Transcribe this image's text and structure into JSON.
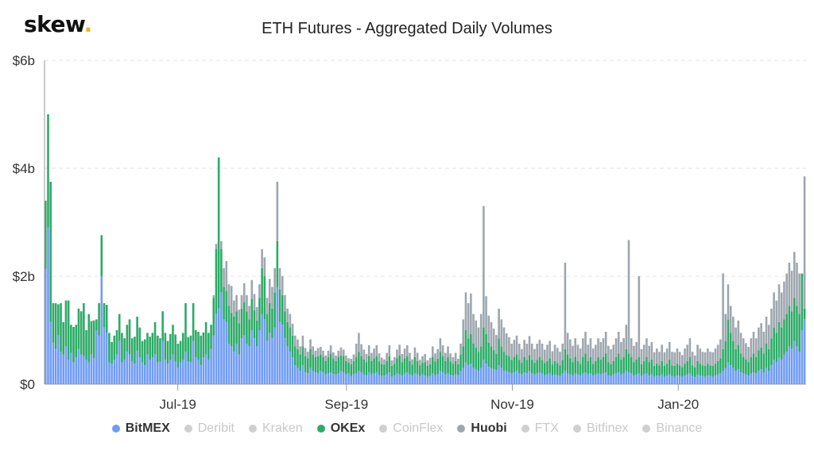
{
  "header": {
    "logo_text": "skew",
    "logo_dot": ".",
    "title": "ETH Futures - Aggregated Daily Volumes"
  },
  "colors": {
    "BitMEX": "#6f9bf5",
    "OKEx": "#2cab66",
    "Huobi": "#9ea6ae",
    "inactive": "#cfcfcf",
    "grid": "#e3e3e3",
    "axis": "#999999",
    "logo_dot": "#f2b50f"
  },
  "legend": [
    {
      "name": "BitMEX",
      "active": true
    },
    {
      "name": "Deribit",
      "active": false
    },
    {
      "name": "Kraken",
      "active": false
    },
    {
      "name": "OKEx",
      "active": true
    },
    {
      "name": "CoinFlex",
      "active": false
    },
    {
      "name": "Huobi",
      "active": true
    },
    {
      "name": "FTX",
      "active": false
    },
    {
      "name": "Bitfinex",
      "active": false
    },
    {
      "name": "Binance",
      "active": false
    }
  ],
  "chart_data": {
    "type": "bar",
    "stacked": true,
    "title": "ETH Futures - Aggregated Daily Volumes",
    "xlabel": "",
    "ylabel": "",
    "x_range": [
      "2019-05-13",
      "2020-02-17"
    ],
    "x_ticks": [
      {
        "date": "2019-07-01",
        "label": "Jul-19"
      },
      {
        "date": "2019-09-01",
        "label": "Sep-19"
      },
      {
        "date": "2019-11-01",
        "label": "Nov-19"
      },
      {
        "date": "2020-01-01",
        "label": "Jan-20"
      }
    ],
    "y_ticks": [
      {
        "value": 0,
        "label": "$0"
      },
      {
        "value": 2,
        "label": "$2b"
      },
      {
        "value": 4,
        "label": "$4b"
      },
      {
        "value": 6,
        "label": "$6b"
      }
    ],
    "ylim": [
      0,
      6
    ],
    "y_unit": "billion USD",
    "grid": true,
    "legend_position": "bottom",
    "series": [
      {
        "name": "BitMEX",
        "daily_values": [
          2.14,
          2.9,
          1.15,
          0.77,
          0.65,
          0.9,
          0.6,
          0.55,
          0.7,
          0.45,
          0.58,
          0.4,
          0.5,
          0.65,
          0.55,
          0.52,
          0.45,
          0.4,
          0.55,
          0.48,
          1.0,
          0.9,
          2.0,
          1.05,
          0.95,
          0.4,
          0.38,
          0.45,
          0.55,
          0.8,
          0.4,
          0.45,
          0.6,
          0.55,
          0.42,
          0.38,
          0.62,
          0.5,
          0.4,
          0.35,
          0.55,
          0.45,
          0.5,
          0.55,
          0.4,
          0.42,
          0.8,
          0.45,
          0.38,
          0.45,
          0.55,
          0.42,
          0.3,
          0.4,
          0.45,
          0.6,
          0.42,
          0.4,
          0.8,
          0.5,
          0.45,
          0.35,
          0.5,
          0.55,
          0.45,
          0.65,
          0.9,
          1.3,
          1.4,
          1.7,
          1.2,
          1.15,
          0.75,
          0.7,
          0.6,
          0.75,
          0.55,
          0.85,
          0.9,
          0.75,
          0.7,
          1.0,
          0.85,
          0.7,
          1.0,
          1.3,
          1.2,
          0.8,
          0.95,
          0.85,
          1.05,
          1.8,
          1.15,
          1.1,
          0.85,
          0.7,
          0.6,
          0.5,
          0.35,
          0.3,
          0.25,
          0.35,
          0.22,
          0.2,
          0.3,
          0.25,
          0.22,
          0.2,
          0.25,
          0.22,
          0.18,
          0.2,
          0.22,
          0.19,
          0.18,
          0.2,
          0.25,
          0.22,
          0.18,
          0.2,
          0.15,
          0.18,
          0.2,
          0.25,
          0.22,
          0.18,
          0.16,
          0.22,
          0.18,
          0.2,
          0.22,
          0.17,
          0.15,
          0.16,
          0.18,
          0.22,
          0.14,
          0.16,
          0.2,
          0.18,
          0.16,
          0.2,
          0.22,
          0.18,
          0.16,
          0.2,
          0.18,
          0.15,
          0.18,
          0.16,
          0.14,
          0.15,
          0.2,
          0.17,
          0.19,
          0.25,
          0.22,
          0.18,
          0.2,
          0.17,
          0.16,
          0.18,
          0.17,
          0.25,
          0.3,
          0.4,
          0.35,
          0.38,
          0.3,
          0.28,
          0.25,
          0.3,
          0.45,
          0.38,
          0.32,
          0.3,
          0.28,
          0.26,
          0.35,
          0.3,
          0.25,
          0.24,
          0.22,
          0.2,
          0.22,
          0.25,
          0.2,
          0.18,
          0.22,
          0.2,
          0.24,
          0.2,
          0.18,
          0.2,
          0.22,
          0.2,
          0.17,
          0.18,
          0.2,
          0.16,
          0.18,
          0.17,
          0.15,
          0.2,
          0.25,
          0.2,
          0.18,
          0.16,
          0.2,
          0.18,
          0.16,
          0.2,
          0.22,
          0.18,
          0.2,
          0.16,
          0.18,
          0.2,
          0.18,
          0.2,
          0.22,
          0.16,
          0.15,
          0.18,
          0.2,
          0.22,
          0.18,
          0.2,
          0.25,
          0.22,
          0.2,
          0.16,
          0.18,
          0.2,
          0.15,
          0.18,
          0.2,
          0.16,
          0.18,
          0.14,
          0.16,
          0.15,
          0.18,
          0.14,
          0.16,
          0.18,
          0.15,
          0.14,
          0.16,
          0.15,
          0.14,
          0.16,
          0.18,
          0.2,
          0.15,
          0.13,
          0.18,
          0.16,
          0.15,
          0.14,
          0.16,
          0.15,
          0.14,
          0.16,
          0.18,
          0.2,
          0.25,
          0.3,
          0.4,
          0.35,
          0.3,
          0.25,
          0.28,
          0.22,
          0.2,
          0.18,
          0.16,
          0.2,
          0.22,
          0.2,
          0.25,
          0.28,
          0.22,
          0.3,
          0.25,
          0.35,
          0.45,
          0.4,
          0.5,
          0.45,
          0.55,
          0.6,
          0.7,
          0.65,
          0.8,
          0.7,
          0.6,
          1.0,
          1.2
        ]
      },
      {
        "name": "OKEx",
        "daily_values": [
          1.26,
          2.1,
          2.6,
          0.73,
          0.85,
          0.58,
          0.9,
          0.6,
          0.85,
          1.1,
          0.52,
          0.66,
          0.6,
          0.75,
          0.8,
          0.98,
          0.55,
          0.9,
          0.62,
          0.7,
          0.2,
          0.6,
          0.76,
          0.45,
          0.52,
          0.55,
          0.4,
          0.45,
          0.45,
          0.5,
          0.55,
          0.4,
          0.5,
          0.65,
          0.43,
          0.5,
          0.63,
          0.55,
          0.4,
          0.48,
          0.4,
          0.43,
          0.45,
          0.6,
          0.5,
          0.43,
          0.55,
          0.5,
          0.42,
          0.48,
          0.55,
          0.5,
          0.45,
          0.4,
          0.5,
          0.9,
          0.45,
          0.5,
          0.7,
          0.5,
          0.52,
          0.55,
          0.46,
          0.6,
          0.5,
          0.45,
          0.7,
          1.2,
          2.8,
          0.8,
          0.6,
          0.58,
          0.7,
          0.62,
          0.65,
          0.6,
          0.58,
          0.55,
          0.62,
          0.6,
          0.5,
          0.58,
          0.52,
          0.48,
          0.6,
          0.85,
          0.8,
          0.5,
          0.55,
          0.55,
          0.65,
          0.85,
          0.6,
          0.55,
          0.5,
          0.45,
          0.45,
          0.4,
          0.35,
          0.35,
          0.3,
          0.35,
          0.3,
          0.28,
          0.35,
          0.3,
          0.28,
          0.32,
          0.3,
          0.28,
          0.25,
          0.3,
          0.35,
          0.28,
          0.25,
          0.3,
          0.28,
          0.3,
          0.25,
          0.2,
          0.22,
          0.25,
          0.3,
          0.35,
          0.3,
          0.28,
          0.25,
          0.3,
          0.25,
          0.28,
          0.3,
          0.25,
          0.22,
          0.2,
          0.25,
          0.3,
          0.2,
          0.22,
          0.28,
          0.35,
          0.25,
          0.28,
          0.3,
          0.25,
          0.2,
          0.3,
          0.25,
          0.2,
          0.22,
          0.25,
          0.2,
          0.22,
          0.3,
          0.25,
          0.28,
          0.35,
          0.3,
          0.25,
          0.3,
          0.25,
          0.22,
          0.25,
          0.2,
          0.3,
          0.4,
          0.6,
          0.5,
          0.55,
          0.45,
          0.4,
          0.35,
          0.4,
          0.6,
          0.55,
          0.45,
          0.4,
          0.35,
          0.3,
          0.5,
          0.4,
          0.35,
          0.3,
          0.3,
          0.25,
          0.28,
          0.3,
          0.25,
          0.22,
          0.28,
          0.25,
          0.3,
          0.25,
          0.22,
          0.25,
          0.28,
          0.25,
          0.22,
          0.25,
          0.28,
          0.2,
          0.25,
          0.22,
          0.2,
          0.25,
          0.4,
          0.35,
          0.3,
          0.25,
          0.3,
          0.25,
          0.22,
          0.3,
          0.35,
          0.25,
          0.3,
          0.22,
          0.25,
          0.3,
          0.28,
          0.3,
          0.35,
          0.25,
          0.22,
          0.25,
          0.3,
          0.35,
          0.28,
          0.3,
          0.4,
          0.35,
          0.3,
          0.25,
          0.28,
          0.3,
          0.22,
          0.25,
          0.3,
          0.25,
          0.28,
          0.2,
          0.22,
          0.2,
          0.25,
          0.2,
          0.22,
          0.28,
          0.2,
          0.2,
          0.22,
          0.2,
          0.18,
          0.22,
          0.25,
          0.3,
          0.2,
          0.18,
          0.25,
          0.22,
          0.2,
          0.2,
          0.22,
          0.2,
          0.2,
          0.22,
          0.25,
          0.28,
          0.4,
          0.5,
          0.8,
          0.6,
          0.5,
          0.4,
          0.45,
          0.35,
          0.3,
          0.28,
          0.25,
          0.3,
          0.35,
          0.3,
          0.38,
          0.4,
          0.35,
          0.45,
          0.4,
          0.5,
          0.6,
          0.55,
          0.65,
          0.6,
          0.65,
          0.7,
          0.75,
          0.7,
          0.8,
          0.75,
          0.7,
          1.05,
          0.2
        ]
      },
      {
        "name": "Huobi",
        "daily_values": [
          0,
          0,
          0,
          0,
          0,
          0,
          0,
          0,
          0,
          0,
          0,
          0,
          0,
          0,
          0,
          0,
          0,
          0,
          0,
          0,
          0,
          0,
          0,
          0,
          0,
          0,
          0,
          0,
          0,
          0,
          0,
          0,
          0,
          0,
          0,
          0,
          0,
          0,
          0,
          0,
          0,
          0,
          0,
          0,
          0,
          0,
          0,
          0,
          0,
          0,
          0,
          0,
          0,
          0,
          0,
          0,
          0,
          0,
          0,
          0,
          0,
          0,
          0,
          0,
          0,
          0,
          0.05,
          0.1,
          0,
          0.15,
          0.35,
          0.55,
          0.4,
          0.5,
          0.3,
          0.3,
          0.25,
          0.25,
          0.35,
          0.3,
          0.25,
          0.35,
          0.3,
          0.25,
          0.25,
          0.35,
          0.35,
          0.3,
          0.45,
          0.4,
          0.45,
          1.1,
          0.4,
          0.35,
          0.3,
          0.25,
          0.25,
          0.22,
          0.2,
          0.18,
          0.15,
          0.2,
          0.15,
          0.12,
          0.18,
          0.15,
          0.12,
          0.15,
          0.14,
          0.12,
          0.1,
          0.12,
          0.15,
          0.12,
          0.1,
          0.12,
          0.15,
          0.12,
          0.1,
          0.08,
          0.1,
          0.12,
          0.25,
          0.35,
          0.22,
          0.18,
          0.15,
          0.2,
          0.15,
          0.18,
          0.2,
          0.15,
          0.12,
          0.1,
          0.15,
          0.2,
          0.1,
          0.12,
          0.16,
          0.2,
          0.15,
          0.18,
          0.2,
          0.15,
          0.1,
          0.18,
          0.15,
          0.1,
          0.12,
          0.15,
          0.1,
          0.12,
          0.2,
          0.15,
          0.18,
          0.25,
          0.2,
          0.15,
          0.2,
          0.15,
          0.12,
          0.15,
          0.1,
          0.2,
          0.5,
          0.7,
          0.65,
          0.75,
          0.55,
          0.5,
          0.45,
          0.6,
          2.25,
          0.7,
          0.5,
          0.45,
          0.4,
          0.35,
          0.55,
          0.5,
          0.45,
          0.4,
          0.35,
          0.3,
          0.32,
          0.35,
          0.3,
          0.25,
          0.32,
          0.3,
          0.35,
          0.3,
          0.25,
          0.3,
          0.32,
          0.3,
          0.25,
          0.3,
          0.32,
          0.25,
          0.3,
          0.28,
          0.25,
          0.3,
          1.6,
          0.4,
          0.35,
          0.3,
          0.35,
          0.3,
          0.28,
          0.35,
          0.4,
          0.3,
          0.35,
          0.28,
          0.3,
          0.35,
          0.32,
          0.35,
          0.4,
          0.3,
          0.28,
          0.3,
          0.35,
          0.4,
          0.32,
          0.35,
          0.45,
          2.1,
          0.35,
          0.3,
          0.32,
          1.5,
          0.28,
          0.3,
          0.35,
          0.3,
          0.32,
          0.25,
          0.28,
          0.25,
          0.3,
          0.25,
          0.28,
          0.32,
          0.25,
          0.25,
          0.28,
          0.25,
          0.22,
          0.28,
          0.3,
          0.35,
          0.25,
          0.22,
          0.3,
          0.28,
          0.25,
          0.25,
          0.28,
          0.25,
          0.25,
          0.28,
          0.3,
          0.35,
          1.4,
          0.5,
          0.65,
          0.5,
          0.45,
          0.4,
          0.45,
          0.38,
          0.35,
          0.3,
          0.28,
          0.35,
          0.4,
          0.35,
          0.42,
          0.45,
          0.4,
          0.5,
          0.45,
          0.55,
          0.65,
          0.6,
          0.7,
          0.65,
          0.7,
          0.75,
          0.8,
          0.75,
          0.85,
          0.8,
          0.75,
          0.0,
          2.45
        ]
      }
    ]
  }
}
